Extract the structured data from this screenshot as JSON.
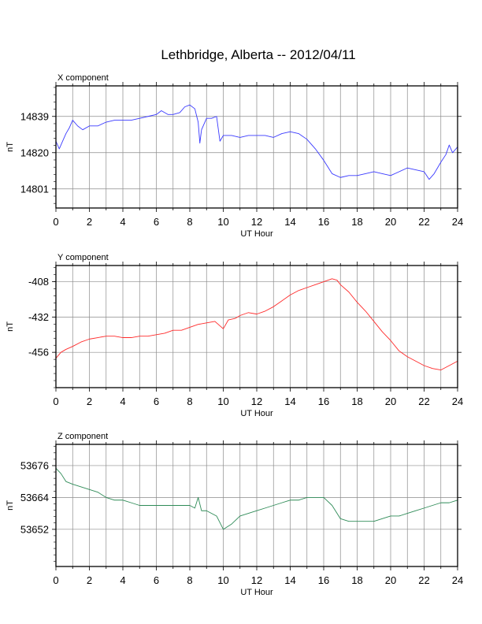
{
  "title": "Lethbridge, Alberta -- 2012/04/11",
  "colors": {
    "x": "#3a3aff",
    "y": "#ff2a2a",
    "z": "#2e8b57",
    "grid": "#8c8c8c",
    "frame": "#000000"
  },
  "chart_data": [
    {
      "type": "line",
      "panel_label": "X component",
      "xlabel": "UT Hour",
      "ylabel": "nT",
      "xlim": [
        0,
        24
      ],
      "xticks": [
        0,
        2,
        4,
        6,
        8,
        10,
        12,
        14,
        16,
        18,
        20,
        22,
        24
      ],
      "ylim": [
        14791,
        14855
      ],
      "yticks": [
        14801,
        14820,
        14839
      ],
      "grid": true,
      "series": [
        {
          "color": "#3a3aff",
          "points": [
            [
              0,
              14826
            ],
            [
              0.2,
              14822
            ],
            [
              0.4,
              14826
            ],
            [
              0.6,
              14830
            ],
            [
              0.8,
              14833
            ],
            [
              1.0,
              14837
            ],
            [
              1.3,
              14834
            ],
            [
              1.6,
              14832
            ],
            [
              2.0,
              14834
            ],
            [
              2.5,
              14834
            ],
            [
              3.0,
              14836
            ],
            [
              3.5,
              14837
            ],
            [
              4.0,
              14837
            ],
            [
              4.5,
              14837
            ],
            [
              5.0,
              14838
            ],
            [
              5.5,
              14839
            ],
            [
              6.0,
              14840
            ],
            [
              6.3,
              14842
            ],
            [
              6.7,
              14840
            ],
            [
              7.0,
              14840
            ],
            [
              7.4,
              14841
            ],
            [
              7.7,
              14844
            ],
            [
              8.0,
              14845
            ],
            [
              8.3,
              14843
            ],
            [
              8.5,
              14836
            ],
            [
              8.6,
              14825
            ],
            [
              8.7,
              14832
            ],
            [
              9.0,
              14838
            ],
            [
              9.3,
              14838
            ],
            [
              9.6,
              14839
            ],
            [
              9.8,
              14826
            ],
            [
              10.0,
              14829
            ],
            [
              10.5,
              14829
            ],
            [
              11.0,
              14828
            ],
            [
              11.5,
              14829
            ],
            [
              12.0,
              14829
            ],
            [
              12.5,
              14829
            ],
            [
              13.0,
              14828
            ],
            [
              13.5,
              14830
            ],
            [
              14.0,
              14831
            ],
            [
              14.5,
              14830
            ],
            [
              15.0,
              14827
            ],
            [
              15.5,
              14822
            ],
            [
              16.0,
              14816
            ],
            [
              16.5,
              14809
            ],
            [
              17.0,
              14807
            ],
            [
              17.5,
              14808
            ],
            [
              18.0,
              14808
            ],
            [
              18.5,
              14809
            ],
            [
              19.0,
              14810
            ],
            [
              19.5,
              14809
            ],
            [
              20.0,
              14808
            ],
            [
              20.5,
              14810
            ],
            [
              21.0,
              14812
            ],
            [
              21.5,
              14811
            ],
            [
              22.0,
              14810
            ],
            [
              22.3,
              14806
            ],
            [
              22.6,
              14809
            ],
            [
              23.0,
              14815
            ],
            [
              23.3,
              14819
            ],
            [
              23.5,
              14824
            ],
            [
              23.7,
              14820
            ],
            [
              24.0,
              14823
            ]
          ]
        }
      ]
    },
    {
      "type": "line",
      "panel_label": "Y component",
      "xlabel": "UT Hour",
      "ylabel": "nT",
      "xlim": [
        0,
        24
      ],
      "xticks": [
        0,
        2,
        4,
        6,
        8,
        10,
        12,
        14,
        16,
        18,
        20,
        22,
        24
      ],
      "ylim": [
        -480,
        -397
      ],
      "yticks": [
        -408,
        -432,
        -456
      ],
      "grid": true,
      "series": [
        {
          "color": "#ff2a2a",
          "points": [
            [
              0,
              -460
            ],
            [
              0.3,
              -456
            ],
            [
              0.6,
              -454
            ],
            [
              1.0,
              -452
            ],
            [
              1.5,
              -449
            ],
            [
              2.0,
              -447
            ],
            [
              2.5,
              -446
            ],
            [
              3.0,
              -445
            ],
            [
              3.5,
              -445
            ],
            [
              4.0,
              -446
            ],
            [
              4.5,
              -446
            ],
            [
              5.0,
              -445
            ],
            [
              5.5,
              -445
            ],
            [
              6.0,
              -444
            ],
            [
              6.5,
              -443
            ],
            [
              7.0,
              -441
            ],
            [
              7.5,
              -441
            ],
            [
              8.0,
              -439
            ],
            [
              8.5,
              -437
            ],
            [
              9.0,
              -436
            ],
            [
              9.5,
              -435
            ],
            [
              10.0,
              -440
            ],
            [
              10.3,
              -434
            ],
            [
              10.7,
              -433
            ],
            [
              11.0,
              -431
            ],
            [
              11.5,
              -429
            ],
            [
              12.0,
              -430
            ],
            [
              12.5,
              -428
            ],
            [
              13.0,
              -425
            ],
            [
              13.5,
              -421
            ],
            [
              14.0,
              -417
            ],
            [
              14.5,
              -414
            ],
            [
              15.0,
              -412
            ],
            [
              15.5,
              -410
            ],
            [
              16.0,
              -408
            ],
            [
              16.5,
              -406
            ],
            [
              16.8,
              -407
            ],
            [
              17.0,
              -410
            ],
            [
              17.5,
              -415
            ],
            [
              18.0,
              -422
            ],
            [
              18.5,
              -428
            ],
            [
              19.0,
              -435
            ],
            [
              19.5,
              -442
            ],
            [
              20.0,
              -448
            ],
            [
              20.5,
              -455
            ],
            [
              21.0,
              -459
            ],
            [
              21.5,
              -462
            ],
            [
              22.0,
              -465
            ],
            [
              22.5,
              -467
            ],
            [
              23.0,
              -468
            ],
            [
              23.5,
              -465
            ],
            [
              24.0,
              -462
            ]
          ]
        }
      ]
    },
    {
      "type": "line",
      "panel_label": "Z component",
      "xlabel": "UT Hour",
      "ylabel": "nT",
      "xlim": [
        0,
        24
      ],
      "xticks": [
        0,
        2,
        4,
        6,
        8,
        10,
        12,
        14,
        16,
        18,
        20,
        22,
        24
      ],
      "ylim": [
        53638,
        53684
      ],
      "yticks": [
        53652,
        53664,
        53676
      ],
      "grid": true,
      "series": [
        {
          "color": "#2e8b57",
          "points": [
            [
              0,
              53675
            ],
            [
              0.3,
              53673
            ],
            [
              0.6,
              53670
            ],
            [
              1.0,
              53669
            ],
            [
              1.5,
              53668
            ],
            [
              2.0,
              53667
            ],
            [
              2.5,
              53666
            ],
            [
              3.0,
              53664
            ],
            [
              3.5,
              53663
            ],
            [
              4.0,
              53663
            ],
            [
              4.5,
              53662
            ],
            [
              5.0,
              53661
            ],
            [
              5.5,
              53661
            ],
            [
              6.0,
              53661
            ],
            [
              6.5,
              53661
            ],
            [
              7.0,
              53661
            ],
            [
              7.5,
              53661
            ],
            [
              8.0,
              53661
            ],
            [
              8.3,
              53660
            ],
            [
              8.5,
              53664
            ],
            [
              8.7,
              53659
            ],
            [
              9.0,
              53659
            ],
            [
              9.3,
              53658
            ],
            [
              9.6,
              53657
            ],
            [
              10.0,
              53652
            ],
            [
              10.5,
              53654
            ],
            [
              11.0,
              53657
            ],
            [
              11.5,
              53658
            ],
            [
              12.0,
              53659
            ],
            [
              12.5,
              53660
            ],
            [
              13.0,
              53661
            ],
            [
              13.5,
              53662
            ],
            [
              14.0,
              53663
            ],
            [
              14.5,
              53663
            ],
            [
              15.0,
              53664
            ],
            [
              15.5,
              53664
            ],
            [
              16.0,
              53664
            ],
            [
              16.5,
              53661
            ],
            [
              17.0,
              53656
            ],
            [
              17.5,
              53655
            ],
            [
              18.0,
              53655
            ],
            [
              18.5,
              53655
            ],
            [
              19.0,
              53655
            ],
            [
              19.5,
              53656
            ],
            [
              20.0,
              53657
            ],
            [
              20.5,
              53657
            ],
            [
              21.0,
              53658
            ],
            [
              21.5,
              53659
            ],
            [
              22.0,
              53660
            ],
            [
              22.5,
              53661
            ],
            [
              23.0,
              53662
            ],
            [
              23.5,
              53662
            ],
            [
              24.0,
              53663
            ]
          ]
        }
      ]
    }
  ]
}
